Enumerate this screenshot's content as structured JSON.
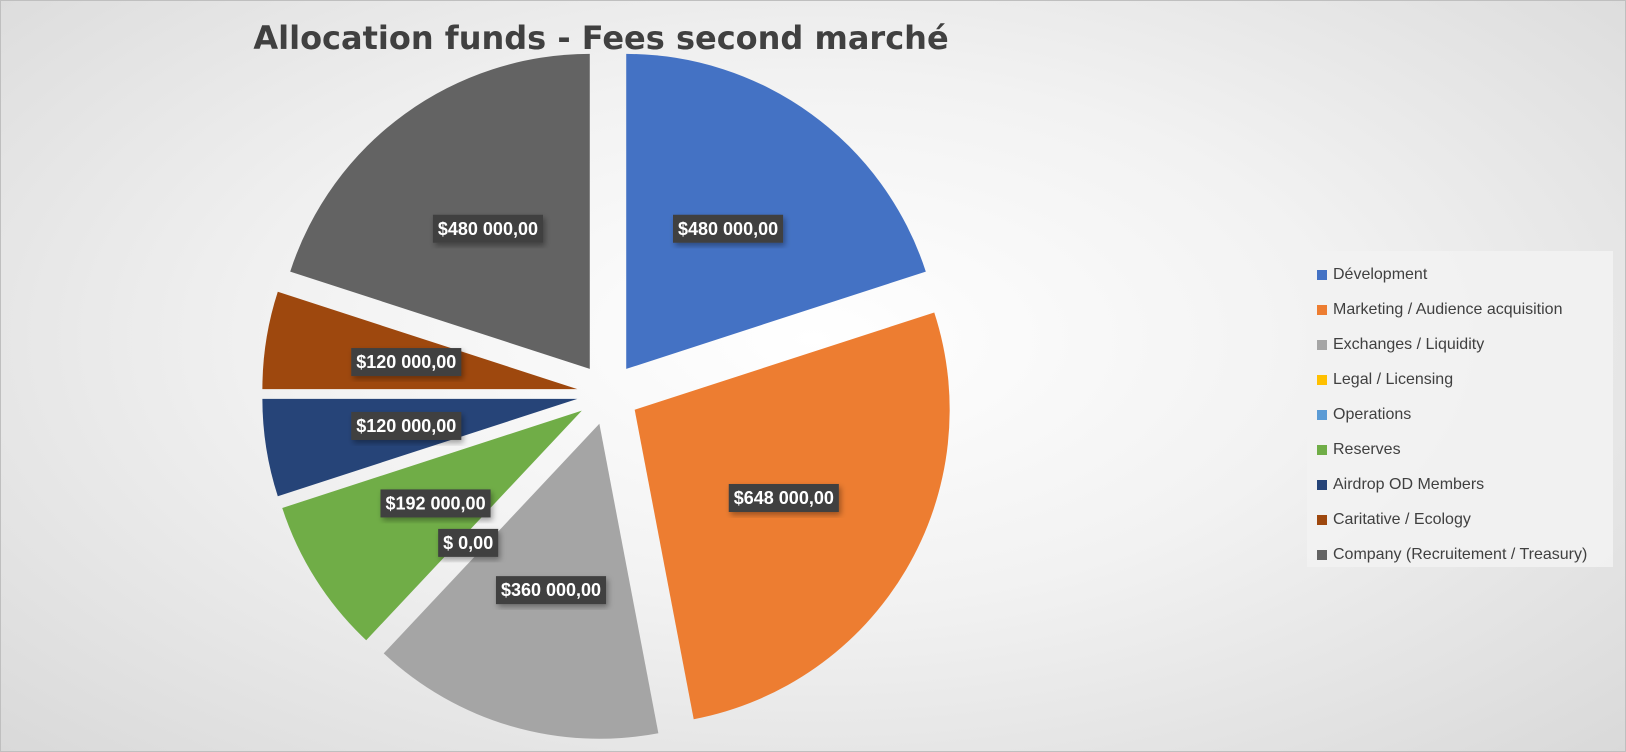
{
  "chart_data": {
    "type": "pie",
    "title": "Allocation funds - Fees second marché",
    "legend_position": "right",
    "slices": [
      {
        "name": "Dévelopment",
        "value": 480000,
        "label": "$480 000,00",
        "color": "#4472c4"
      },
      {
        "name": "Marketing / Audience acquisition",
        "value": 648000,
        "label": "$648 000,00",
        "color": "#ed7d31"
      },
      {
        "name": "Exchanges / Liquidity",
        "value": 360000,
        "label": "$360 000,00",
        "color": "#a5a5a5"
      },
      {
        "name": "Legal / Licensing",
        "value": 0,
        "label": "$ 0,00",
        "color": "#ffc000"
      },
      {
        "name": "Operations",
        "value": 0,
        "label": "",
        "color": "#5b9bd5"
      },
      {
        "name": "Reserves",
        "value": 192000,
        "label": "$192 000,00",
        "color": "#70ad47"
      },
      {
        "name": "Airdrop OD Members",
        "value": 120000,
        "label": "$120 000,00",
        "color": "#264478"
      },
      {
        "name": "Caritative / Ecology",
        "value": 120000,
        "label": "$120 000,00",
        "color": "#9e480e"
      },
      {
        "name": "Company (Recruitement / Treasury)",
        "value": 480000,
        "label": "$480 000,00",
        "color": "#636363"
      }
    ]
  }
}
